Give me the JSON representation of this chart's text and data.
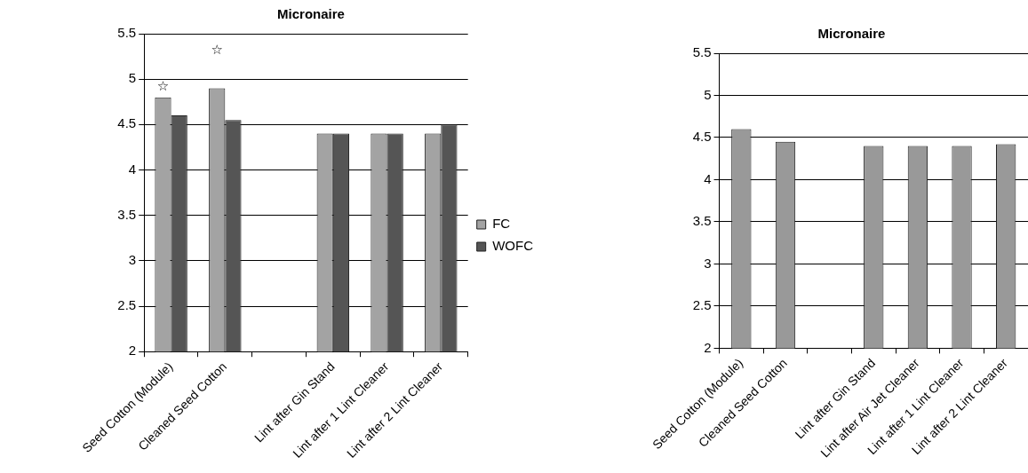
{
  "chart_data": [
    {
      "type": "bar",
      "title": "Micronaire",
      "categories": [
        "Seed Cotton (Module)",
        "Cleaned Seed Cotton",
        null,
        "Lint after Gin Stand",
        "Lint after 1 Lint Cleaner",
        "Lint after 2 Lint Cleaner"
      ],
      "series": [
        {
          "name": "FC",
          "color": "#a3a3a3",
          "values": [
            4.8,
            4.9,
            null,
            4.4,
            4.4,
            4.4
          ]
        },
        {
          "name": "WOFC",
          "color": "#555555",
          "values": [
            4.6,
            4.55,
            null,
            4.4,
            4.4,
            4.5
          ]
        }
      ],
      "ylim": [
        2,
        5.5
      ],
      "yticks": [
        2,
        2.5,
        3,
        3.5,
        4,
        4.5,
        5,
        5.5
      ],
      "grid": "y",
      "legend": "right",
      "annotations": [
        "☆",
        "☆"
      ]
    },
    {
      "type": "bar",
      "title": "Micronaire",
      "categories": [
        "Seed Cotton (Module)",
        "Cleaned Seed Cotton",
        null,
        "Lint after Gin Stand",
        "Lint after Air Jet Cleaner",
        "Lint after 1 Lint Cleaner",
        "Lint after 2 Lint Cleaner"
      ],
      "series": [
        {
          "color": "#999999",
          "values": [
            4.6,
            4.45,
            null,
            4.4,
            4.4,
            4.4,
            4.42
          ]
        }
      ],
      "ylim": [
        2,
        5.5
      ],
      "yticks": [
        2,
        2.5,
        3,
        3.5,
        4,
        4.5,
        5,
        5.5
      ],
      "grid": "y",
      "legend": false
    }
  ]
}
